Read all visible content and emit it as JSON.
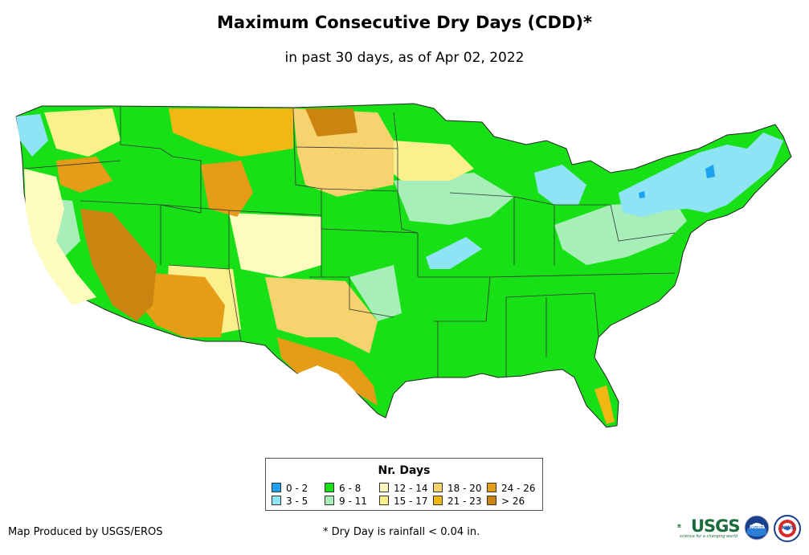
{
  "title": "Maximum Consecutive Dry Days (CDD)*",
  "subtitle": "in past 30 days, as of Apr 02, 2022",
  "legend": {
    "title": "Nr. Days",
    "items": [
      {
        "label": "0 - 2",
        "color": "#1aa3f0"
      },
      {
        "label": "3 - 5",
        "color": "#8ee3f5"
      },
      {
        "label": "6 - 8",
        "color": "#17e017"
      },
      {
        "label": "9 - 11",
        "color": "#a8eeb8"
      },
      {
        "label": "12 - 14",
        "color": "#fdfbbe"
      },
      {
        "label": "15 - 17",
        "color": "#fbf08c"
      },
      {
        "label": "18 - 20",
        "color": "#f6d36e"
      },
      {
        "label": "21 - 23",
        "color": "#f2b713"
      },
      {
        "label": "24 - 26",
        "color": "#e59c17"
      },
      {
        "label": "> 26",
        "color": "#cc8410"
      }
    ]
  },
  "footer": {
    "credit": "Map Produced by USGS/EROS",
    "footnote": "* Dry Day is rainfall < 0.04 in."
  },
  "logos": {
    "usgs": "USGS",
    "usgs_tagline": "science for a changing world",
    "noaa": "NOAA",
    "nws": "NWS"
  }
}
